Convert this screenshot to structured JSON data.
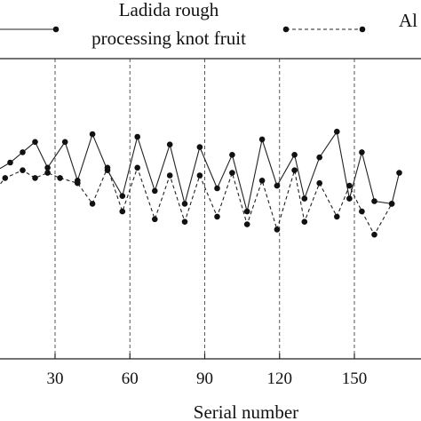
{
  "chart_data": {
    "type": "line",
    "xlabel": "Serial number",
    "ylabel": "",
    "xlim": [
      5,
      165
    ],
    "ylim": [
      0,
      10
    ],
    "x_ticks": [
      30,
      60,
      90,
      120,
      150
    ],
    "x_tick_labels": [
      "30",
      "60",
      "90",
      "120",
      "150"
    ],
    "vertical_gridlines": true,
    "legend_placement": "top",
    "series": [
      {
        "name": "Ladida rough processing knot fruit",
        "line_style": "solid",
        "color": "#222222",
        "points": [
          [
            5,
            6.6
          ],
          [
            12,
            7.0
          ],
          [
            17,
            7.4
          ],
          [
            22,
            7.8
          ],
          [
            27,
            6.8
          ],
          [
            34,
            7.8
          ],
          [
            39,
            6.3
          ],
          [
            45,
            8.1
          ],
          [
            51,
            6.7
          ],
          [
            57,
            5.7
          ],
          [
            63,
            8.0
          ],
          [
            70,
            5.9
          ],
          [
            76,
            7.7
          ],
          [
            82,
            5.4
          ],
          [
            88,
            7.6
          ],
          [
            95,
            6.0
          ],
          [
            101,
            7.3
          ],
          [
            107,
            5.1
          ],
          [
            113,
            7.9
          ],
          [
            119,
            6.1
          ],
          [
            126,
            7.3
          ],
          [
            130,
            5.6
          ],
          [
            136,
            7.2
          ],
          [
            143,
            8.2
          ],
          [
            148,
            5.6
          ],
          [
            153,
            7.4
          ],
          [
            158,
            5.5
          ],
          [
            165,
            5.4
          ],
          [
            168,
            6.6
          ]
        ]
      },
      {
        "name": "Al",
        "line_style": "dashed",
        "color": "#222222",
        "points": [
          [
            5,
            5.8
          ],
          [
            10,
            6.4
          ],
          [
            17,
            6.7
          ],
          [
            22,
            6.4
          ],
          [
            27,
            6.6
          ],
          [
            32,
            6.4
          ],
          [
            39,
            6.2
          ],
          [
            45,
            5.4
          ],
          [
            51,
            6.8
          ],
          [
            57,
            5.1
          ],
          [
            63,
            6.8
          ],
          [
            70,
            4.8
          ],
          [
            76,
            6.5
          ],
          [
            82,
            4.7
          ],
          [
            88,
            6.5
          ],
          [
            95,
            4.9
          ],
          [
            101,
            6.6
          ],
          [
            107,
            4.6
          ],
          [
            113,
            6.3
          ],
          [
            119,
            4.4
          ],
          [
            126,
            6.7
          ],
          [
            130,
            4.7
          ],
          [
            136,
            6.2
          ],
          [
            143,
            4.9
          ],
          [
            148,
            6.1
          ],
          [
            153,
            5.1
          ],
          [
            158,
            4.2
          ],
          [
            165,
            5.4
          ]
        ]
      }
    ]
  }
}
